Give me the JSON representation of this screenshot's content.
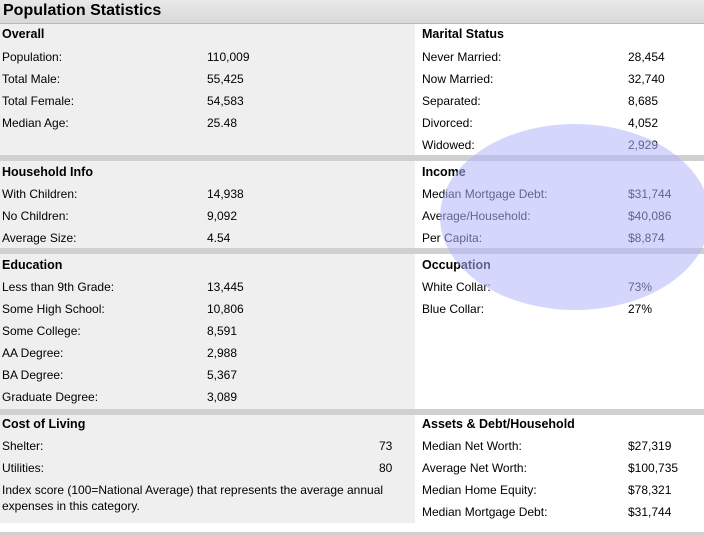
{
  "title": "Population Statistics",
  "overall": {
    "heading": "Overall",
    "rows": [
      {
        "label": "Population:",
        "value": "110,009"
      },
      {
        "label": "Total Male:",
        "value": "55,425"
      },
      {
        "label": "Total Female:",
        "value": "54,583"
      },
      {
        "label": "Median Age:",
        "value": "25.48"
      }
    ]
  },
  "marital": {
    "heading": "Marital Status",
    "rows": [
      {
        "label": "Never Married:",
        "value": "28,454"
      },
      {
        "label": "Now Married:",
        "value": "32,740"
      },
      {
        "label": "Separated:",
        "value": "8,685"
      },
      {
        "label": "Divorced:",
        "value": "4,052"
      },
      {
        "label": "Widowed:",
        "value": "2,929"
      }
    ]
  },
  "household": {
    "heading": "Household Info",
    "rows": [
      {
        "label": "With Children:",
        "value": "14,938"
      },
      {
        "label": "No Children:",
        "value": "9,092"
      },
      {
        "label": "Average Size:",
        "value": "4.54"
      }
    ]
  },
  "income": {
    "heading": "Income",
    "rows": [
      {
        "label": "Median Mortgage Debt:",
        "value": "$31,744"
      },
      {
        "label": "Average/Household:",
        "value": "$40,086"
      },
      {
        "label": "Per Capita:",
        "value": "$8,874"
      }
    ]
  },
  "education": {
    "heading": "Education",
    "rows": [
      {
        "label": "Less than 9th Grade:",
        "value": "13,445"
      },
      {
        "label": "Some High School:",
        "value": "10,806"
      },
      {
        "label": "Some College:",
        "value": "8,591"
      },
      {
        "label": "AA Degree:",
        "value": "2,988"
      },
      {
        "label": "BA Degree:",
        "value": "5,367"
      },
      {
        "label": "Graduate Degree:",
        "value": "3,089"
      }
    ]
  },
  "occupation": {
    "heading": "Occupation",
    "rows": [
      {
        "label": "White Collar:",
        "value": "73%"
      },
      {
        "label": "Blue Collar:",
        "value": "27%"
      }
    ]
  },
  "cost_of_living": {
    "heading": "Cost of Living",
    "rows": [
      {
        "label": "Shelter:",
        "value": "73"
      },
      {
        "label": "Utilities:",
        "value": "80"
      }
    ],
    "note": "Index score (100=National Average) that represents the average annual expenses in this category."
  },
  "assets": {
    "heading": "Assets & Debt/Household",
    "rows": [
      {
        "label": "Median Net Worth:",
        "value": "$27,319"
      },
      {
        "label": "Average Net Worth:",
        "value": "$100,735"
      },
      {
        "label": "Median Home Equity:",
        "value": "$78,321"
      },
      {
        "label": "Median Mortgage Debt:",
        "value": "$31,744"
      }
    ]
  },
  "colors": {
    "section_background": "#efefef",
    "header_bar": "#d9d9d9",
    "highlight_circle": "#b2b4fa"
  }
}
